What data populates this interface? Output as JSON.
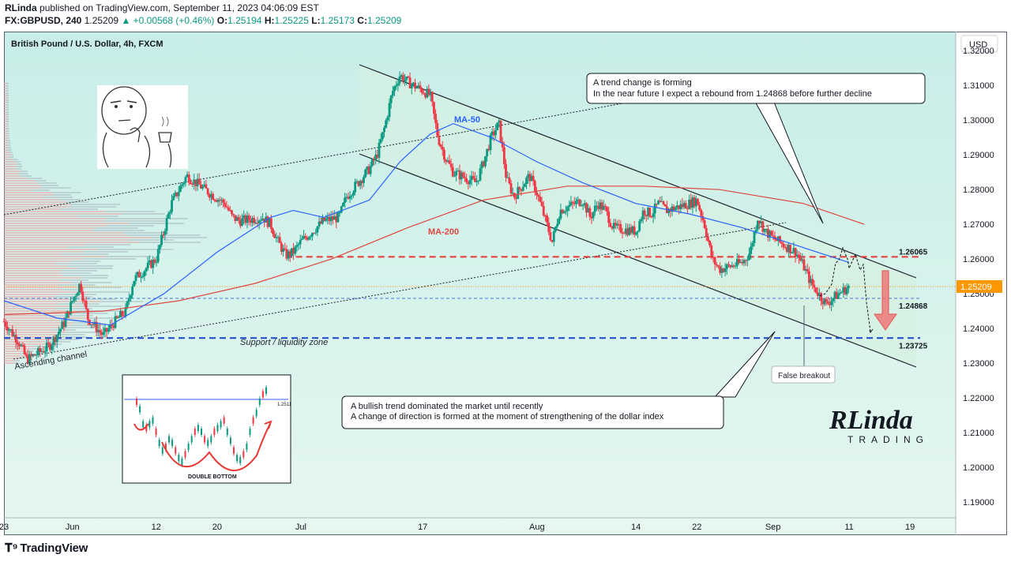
{
  "header": {
    "author": "RLinda",
    "published_text": "published on TradingView.com, September 11, 2023 04:06:09 EST",
    "symbol": "FX:GBPUSD, 240",
    "last": "1.25209",
    "change": "▲ +0.00568 (+0.46%)",
    "o_label": "O:",
    "o_value": "1.25194",
    "h_label": "H:",
    "h_value": "1.25225",
    "l_label": "L:",
    "l_value": "1.25173",
    "c_label": "C:",
    "c_value": "1.25209"
  },
  "footer": {
    "brand": "TradingView",
    "logo_icon": "tradingview-logo-icon"
  },
  "colors": {
    "up": "#089981",
    "down": "#f23645",
    "ma50": "#2962ff",
    "ma200": "#e0473f",
    "support": "#1848cc",
    "resistance": "#e53935",
    "channel_fill": "#d6f0e2",
    "bg_top": "#c7ede8",
    "bg_bottom": "#e6f7ef",
    "price_tag": "#ff9800"
  },
  "chart_data": {
    "type": "candlestick",
    "title": "British Pound / U.S. Dollar, 4h, FXCM",
    "currency": "USD",
    "ylim": [
      1.1855,
      1.3255
    ],
    "y_ticks": [
      "1.32000",
      "1.31000",
      "1.30000",
      "1.29000",
      "1.28000",
      "1.27000",
      "1.26000",
      "1.25000",
      "1.24000",
      "1.23000",
      "1.22000",
      "1.21000",
      "1.20000",
      "1.19000"
    ],
    "x_ticks": [
      "23",
      "Jun",
      "12",
      "20",
      "Jul",
      "17",
      "Aug",
      "14",
      "22",
      "Sep",
      "11",
      "19"
    ],
    "x_tick_dates": [
      "2023-05-23",
      "2023-06-01",
      "2023-06-12",
      "2023-06-20",
      "2023-07-01",
      "2023-07-17",
      "2023-08-01",
      "2023-08-14",
      "2023-08-22",
      "2023-09-01",
      "2023-09-11",
      "2023-09-19"
    ],
    "xlim": [
      "2023-05-23",
      "2023-09-25"
    ],
    "last_price": "1.25209",
    "price_path": [
      [
        "2023-05-23",
        1.242
      ],
      [
        "2023-05-25",
        1.236
      ],
      [
        "2023-05-26",
        1.231
      ],
      [
        "2023-05-29",
        1.235
      ],
      [
        "2023-05-31",
        1.242
      ],
      [
        "2023-06-01",
        1.248
      ],
      [
        "2023-06-02",
        1.253
      ],
      [
        "2023-06-03",
        1.243
      ],
      [
        "2023-06-05",
        1.238
      ],
      [
        "2023-06-07",
        1.243
      ],
      [
        "2023-06-08",
        1.245
      ],
      [
        "2023-06-09",
        1.254
      ],
      [
        "2023-06-12",
        1.26
      ],
      [
        "2023-06-13",
        1.268
      ],
      [
        "2023-06-14",
        1.276
      ],
      [
        "2023-06-15",
        1.28
      ],
      [
        "2023-06-16",
        1.284
      ],
      [
        "2023-06-19",
        1.279
      ],
      [
        "2023-06-21",
        1.276
      ],
      [
        "2023-06-22",
        1.272
      ],
      [
        "2023-06-23",
        1.271
      ],
      [
        "2023-06-26",
        1.272
      ],
      [
        "2023-06-27",
        1.27
      ],
      [
        "2023-06-28",
        1.265
      ],
      [
        "2023-06-29",
        1.261
      ],
      [
        "2023-06-30",
        1.262
      ],
      [
        "2023-07-01",
        1.265
      ],
      [
        "2023-07-04",
        1.271
      ],
      [
        "2023-07-06",
        1.272
      ],
      [
        "2023-07-07",
        1.278
      ],
      [
        "2023-07-10",
        1.286
      ],
      [
        "2023-07-11",
        1.29
      ],
      [
        "2023-07-12",
        1.298
      ],
      [
        "2023-07-13",
        1.308
      ],
      [
        "2023-07-14",
        1.313
      ],
      [
        "2023-07-15",
        1.311
      ],
      [
        "2023-07-17",
        1.3085
      ],
      [
        "2023-07-18",
        1.307
      ],
      [
        "2023-07-19",
        1.295
      ],
      [
        "2023-07-20",
        1.289
      ],
      [
        "2023-07-21",
        1.285
      ],
      [
        "2023-07-24",
        1.282
      ],
      [
        "2023-07-25",
        1.288
      ],
      [
        "2023-07-26",
        1.295
      ],
      [
        "2023-07-27",
        1.299
      ],
      [
        "2023-07-28",
        1.283
      ],
      [
        "2023-07-29",
        1.278
      ],
      [
        "2023-07-31",
        1.284
      ],
      [
        "2023-08-01",
        1.279
      ],
      [
        "2023-08-02",
        1.272
      ],
      [
        "2023-08-03",
        1.265
      ],
      [
        "2023-08-04",
        1.274
      ],
      [
        "2023-08-07",
        1.277
      ],
      [
        "2023-08-08",
        1.272
      ],
      [
        "2023-08-09",
        1.276
      ],
      [
        "2023-08-10",
        1.274
      ],
      [
        "2023-08-11",
        1.269
      ],
      [
        "2023-08-14",
        1.268
      ],
      [
        "2023-08-15",
        1.274
      ],
      [
        "2023-08-16",
        1.273
      ],
      [
        "2023-08-17",
        1.276
      ],
      [
        "2023-08-18",
        1.274
      ],
      [
        "2023-08-21",
        1.276
      ],
      [
        "2023-08-22",
        1.277
      ],
      [
        "2023-08-23",
        1.27
      ],
      [
        "2023-08-24",
        1.26
      ],
      [
        "2023-08-25",
        1.257
      ],
      [
        "2023-08-28",
        1.259
      ],
      [
        "2023-08-29",
        1.262
      ],
      [
        "2023-08-30",
        1.272
      ],
      [
        "2023-08-31",
        1.268
      ],
      [
        "2023-09-01",
        1.266
      ],
      [
        "2023-09-04",
        1.262
      ],
      [
        "2023-09-05",
        1.258
      ],
      [
        "2023-09-06",
        1.253
      ],
      [
        "2023-09-07",
        1.25
      ],
      [
        "2023-09-08",
        1.247
      ],
      [
        "2023-09-09",
        1.249
      ],
      [
        "2023-09-11",
        1.2521
      ]
    ],
    "ma50": [
      [
        "2023-05-23",
        1.248
      ],
      [
        "2023-05-30",
        1.243
      ],
      [
        "2023-06-06",
        1.241
      ],
      [
        "2023-06-13",
        1.25
      ],
      [
        "2023-06-20",
        1.262
      ],
      [
        "2023-06-27",
        1.272
      ],
      [
        "2023-06-30",
        1.274
      ],
      [
        "2023-07-04",
        1.272
      ],
      [
        "2023-07-10",
        1.277
      ],
      [
        "2023-07-14",
        1.288
      ],
      [
        "2023-07-18",
        1.296
      ],
      [
        "2023-07-21",
        1.299
      ],
      [
        "2023-07-26",
        1.295
      ],
      [
        "2023-08-01",
        1.288
      ],
      [
        "2023-08-07",
        1.282
      ],
      [
        "2023-08-14",
        1.276
      ],
      [
        "2023-08-21",
        1.273
      ],
      [
        "2023-08-28",
        1.269
      ],
      [
        "2023-09-04",
        1.264
      ],
      [
        "2023-09-11",
        1.259
      ]
    ],
    "ma200": [
      [
        "2023-05-23",
        1.244
      ],
      [
        "2023-06-05",
        1.245
      ],
      [
        "2023-06-15",
        1.248
      ],
      [
        "2023-06-25",
        1.253
      ],
      [
        "2023-07-05",
        1.26
      ],
      [
        "2023-07-15",
        1.269
      ],
      [
        "2023-07-25",
        1.277
      ],
      [
        "2023-08-05",
        1.281
      ],
      [
        "2023-08-15",
        1.281
      ],
      [
        "2023-08-25",
        1.28
      ],
      [
        "2023-09-05",
        1.276
      ],
      [
        "2023-09-13",
        1.27
      ]
    ],
    "levels": [
      {
        "value": 1.26065,
        "label": "1.26065",
        "style": "dashed",
        "color": "#e53935"
      },
      {
        "value": 1.24868,
        "label": "1.24868",
        "style": "dashed",
        "color": "#4a76d4"
      },
      {
        "value": 1.23725,
        "label": "1.23725",
        "style": "dashed",
        "color": "#1848cc"
      }
    ],
    "indicator_labels": {
      "ma50": "MA-50",
      "ma200": "MA-200"
    },
    "annotations": {
      "trend_change": [
        "A trend change is forming",
        "In the near future I expect a rebound from 1.24868 before further decline"
      ],
      "bullish_trend": [
        "A bullish trend dominated the market until recently",
        "A change of direction is formed at the moment of strengthening of the dollar index"
      ],
      "support_zone": "Support / liquidity zone",
      "ascending_channel": "Ascending channel",
      "false_breakout": "False breakout",
      "double_bottom": "DOUBLE BOTTOM",
      "inset_level": "1.2511",
      "logo_main": "RLinda",
      "logo_sub": "TRADING"
    },
    "grid": false,
    "legend": "none"
  }
}
